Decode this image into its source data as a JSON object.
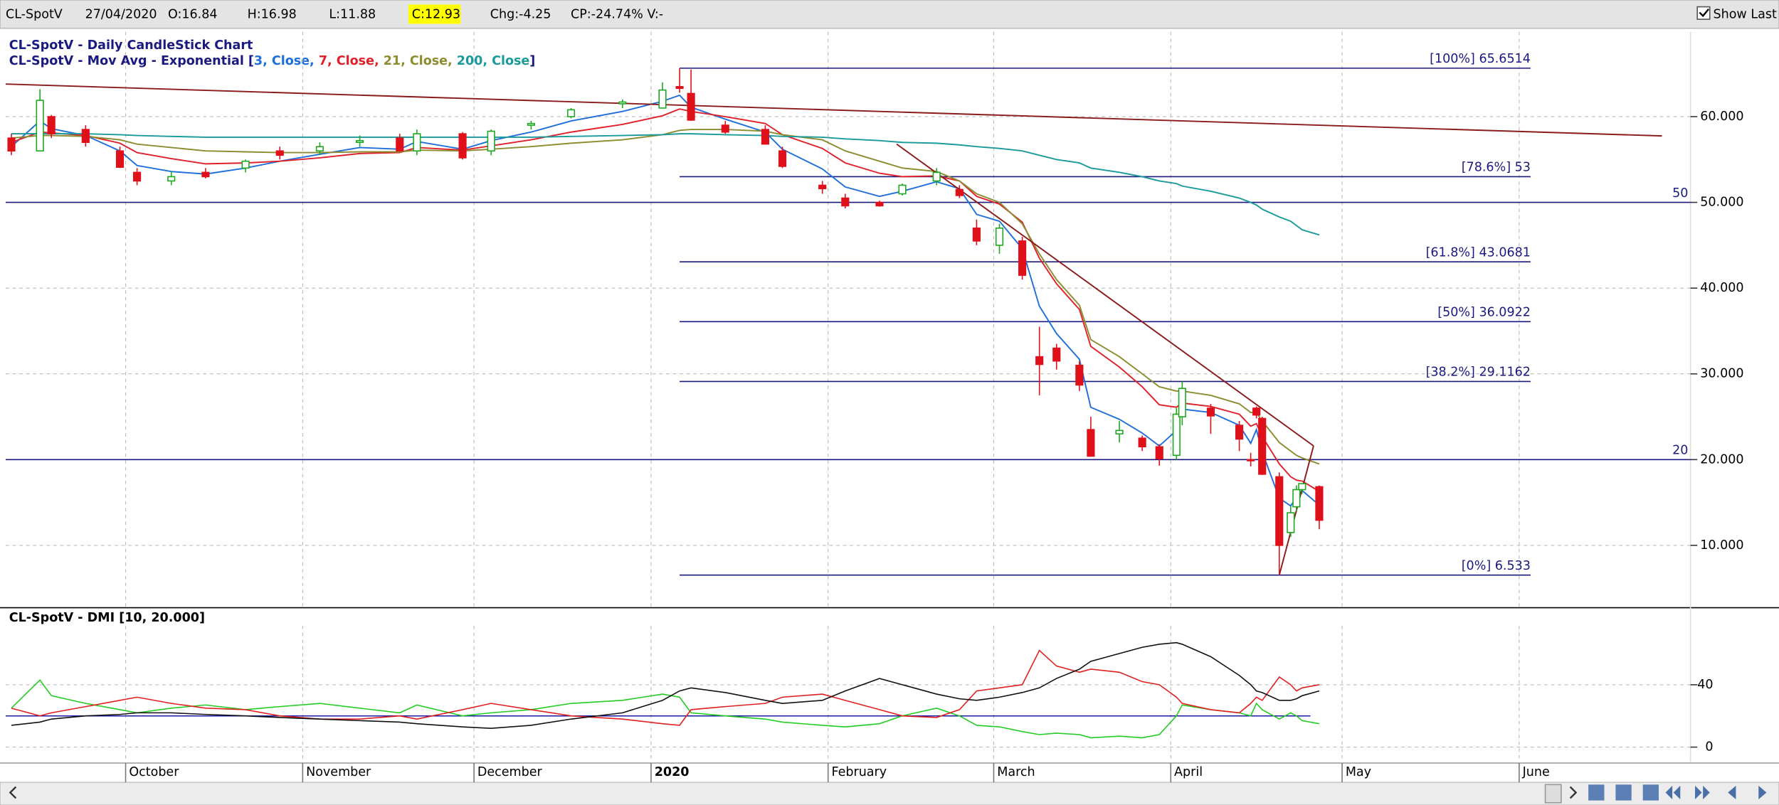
{
  "header": {
    "symbol": "CL-SpotV",
    "date": "27/04/2020",
    "open": "O:16.84",
    "high": "H:16.98",
    "low": "L:11.88",
    "close": "C:12.93",
    "change": "Chg:-4.25",
    "change_pct": "CP:-24.74% V:-",
    "show_last": "Show Last"
  },
  "chart_data": [
    {
      "type": "candlestick",
      "title": "CL-SpotV - Daily CandleStick Chart",
      "subtitle": [
        {
          "text": "CL-SpotV - Mov Avg - Exponential [",
          "color": "#1a1a80"
        },
        {
          "text": "3, Close, ",
          "color": "#1e6fd9"
        },
        {
          "text": "7, Close, ",
          "color": "#e0202a"
        },
        {
          "text": "21, Close, ",
          "color": "#8c8c30"
        },
        {
          "text": "200, Close",
          "color": "#1a9a9a"
        },
        {
          "text": "]",
          "color": "#1a1a80"
        }
      ],
      "x": [
        "2019-09-11",
        "2019-09-16",
        "2019-09-18",
        "2019-09-24",
        "2019-09-30",
        "2019-10-03",
        "2019-10-09",
        "2019-10-15",
        "2019-10-22",
        "2019-10-28",
        "2019-11-04",
        "2019-11-11",
        "2019-11-18",
        "2019-11-21",
        "2019-11-29",
        "2019-12-04",
        "2019-12-11",
        "2019-12-18",
        "2019-12-27",
        "2020-01-03",
        "2020-01-06",
        "2020-01-08",
        "2020-01-14",
        "2020-01-21",
        "2020-01-24",
        "2020-01-31",
        "2020-02-04",
        "2020-02-10",
        "2020-02-14",
        "2020-02-20",
        "2020-02-24",
        "2020-02-27",
        "2020-03-02",
        "2020-03-06",
        "2020-03-09",
        "2020-03-12",
        "2020-03-16",
        "2020-03-18",
        "2020-03-23",
        "2020-03-27",
        "2020-03-30",
        "2020-04-02",
        "2020-04-03",
        "2020-04-08",
        "2020-04-13",
        "2020-04-15",
        "2020-04-16",
        "2020-04-17",
        "2020-04-20",
        "2020-04-22",
        "2020-04-23",
        "2020-04-24",
        "2020-04-27"
      ],
      "open": [
        57.5,
        56,
        60,
        58.5,
        56,
        53.5,
        52.5,
        53.5,
        54,
        56,
        56,
        57,
        57.5,
        56,
        58,
        56,
        59,
        60,
        61.5,
        61,
        63.5,
        62.7,
        59,
        58.5,
        56,
        52,
        50.5,
        50,
        51,
        52.5,
        51.5,
        47,
        45,
        45.5,
        32,
        33,
        31,
        23.5,
        23,
        22.5,
        21.5,
        20.5,
        25,
        26,
        24,
        20,
        26,
        24.8,
        18,
        11.5,
        14.5,
        16.5,
        16.84
      ],
      "high": [
        58,
        63.2,
        60.2,
        59,
        56.5,
        54,
        53.6,
        54,
        55,
        56.5,
        57,
        57.8,
        58,
        58.5,
        58.2,
        58.5,
        59.5,
        61,
        62,
        64,
        65.65,
        65.5,
        59.5,
        59,
        56.5,
        52.5,
        51,
        50.2,
        52.2,
        54,
        52,
        48,
        47.5,
        46,
        35.5,
        33.5,
        31.5,
        25,
        24.5,
        22.8,
        21.8,
        26,
        29.1,
        26.5,
        24.5,
        20.8,
        26.2,
        25,
        18.5,
        14.5,
        17,
        17.2,
        16.98
      ],
      "low": [
        55.5,
        56,
        57.5,
        56.5,
        54,
        52,
        52,
        52.8,
        53.5,
        55,
        55.5,
        56.5,
        56,
        55.5,
        55,
        55.5,
        58.5,
        59.8,
        61,
        61,
        62.8,
        59.5,
        58,
        57,
        54,
        51,
        49.3,
        49.5,
        50.8,
        52,
        50.5,
        45,
        44,
        41,
        27.5,
        30.5,
        28,
        20.5,
        22,
        21,
        19.3,
        20,
        24,
        23,
        21,
        19.2,
        24.8,
        18.2,
        6.53,
        11,
        14,
        16,
        11.88
      ],
      "close": [
        56,
        61.9,
        58,
        57,
        54.1,
        52.5,
        53,
        53,
        54.8,
        55.5,
        56.5,
        57.2,
        56,
        58,
        55.2,
        58.3,
        59.2,
        60.8,
        61.7,
        63.1,
        63.3,
        59.6,
        58.2,
        56.8,
        54.2,
        51.6,
        49.6,
        49.6,
        52,
        53.5,
        50.8,
        45.5,
        47,
        41.5,
        31.1,
        31.5,
        28.7,
        20.4,
        23.4,
        21.5,
        20.1,
        25.3,
        28.3,
        25.1,
        22.4,
        19.9,
        25.2,
        18.3,
        10,
        13.8,
        16.5,
        17.2,
        12.93
      ],
      "up_color": "#1fa81f",
      "down_color": "#e0101a",
      "lines": [
        {
          "color": "#1e6fd9",
          "values": [
            56.5,
            59.5,
            58.6,
            57.8,
            56,
            54.3,
            53.6,
            53.3,
            54,
            54.8,
            55.6,
            56.4,
            56.2,
            57.1,
            56.2,
            57.2,
            58.2,
            59.5,
            60.6,
            61.8,
            62.5,
            61.1,
            59.7,
            58.2,
            56.2,
            53.9,
            51.8,
            50.7,
            51.3,
            52.4,
            51.6,
            48.6,
            47.8,
            44.6,
            37.9,
            34.7,
            31.7,
            26.1,
            24.7,
            23.1,
            21.6,
            23.4,
            25.9,
            25.5,
            24,
            21.9,
            23.5,
            20.9,
            15.5,
            14.6,
            15.6,
            16.4,
            14.7
          ]
        },
        {
          "color": "#e0202a",
          "values": [
            57,
            58.2,
            58.1,
            57.8,
            56.9,
            55.8,
            55.1,
            54.5,
            54.6,
            54.8,
            55.2,
            55.7,
            55.8,
            56.4,
            56.1,
            56.6,
            57.3,
            58.2,
            59.1,
            60.1,
            60.9,
            60.6,
            60,
            59.2,
            57.9,
            56.3,
            54.6,
            53.4,
            53,
            53.1,
            52.5,
            50.7,
            49.8,
            47.7,
            43.5,
            40.5,
            37.5,
            33.2,
            30.8,
            28.5,
            26.4,
            26.1,
            26.6,
            26.2,
            25.3,
            23.9,
            24.2,
            22.7,
            19.5,
            18,
            17.6,
            17.5,
            16.3
          ]
        },
        {
          "color": "#8c8c30",
          "values": [
            57.5,
            57.8,
            57.8,
            57.7,
            57.3,
            56.8,
            56.4,
            56,
            55.9,
            55.8,
            55.8,
            55.9,
            55.9,
            56.1,
            56,
            56.2,
            56.5,
            56.9,
            57.3,
            57.9,
            58.4,
            58.5,
            58.5,
            58.3,
            57.9,
            57.3,
            56,
            54.8,
            54,
            53.6,
            52.5,
            51,
            50,
            47.5,
            44,
            41,
            38,
            34,
            32,
            30,
            28.5,
            28,
            28,
            27.5,
            26.5,
            25.5,
            25.5,
            24.5,
            22,
            21,
            20.5,
            20.2,
            19.5
          ]
        },
        {
          "color": "#1a9a9a",
          "values": [
            58,
            58,
            58,
            58,
            57.9,
            57.8,
            57.7,
            57.6,
            57.6,
            57.6,
            57.6,
            57.6,
            57.6,
            57.6,
            57.6,
            57.6,
            57.6,
            57.7,
            57.8,
            57.9,
            58,
            58,
            57.9,
            57.8,
            57.7,
            57.6,
            57.4,
            57.2,
            57,
            56.9,
            56.7,
            56.5,
            56.3,
            56,
            55.5,
            55,
            54.6,
            54,
            53.5,
            53,
            52.5,
            52.2,
            51.9,
            51.3,
            50.5,
            50,
            49.7,
            49.2,
            48.3,
            47.8,
            47.3,
            46.8,
            46.2
          ]
        }
      ],
      "levels": [
        {
          "value": 65.6514,
          "label": "[100%] 65.6514"
        },
        {
          "value": 53,
          "label": "[78.6%] 53"
        },
        {
          "value": 43.0681,
          "label": "[61.8%] 43.0681"
        },
        {
          "value": 36.0922,
          "label": "[50%] 36.0922"
        },
        {
          "value": 29.1162,
          "label": "[38.2%] 29.1162"
        },
        {
          "value": 6.533,
          "label": "[0%] 6.533"
        }
      ],
      "levels_from": "2020-01-06",
      "levels_to": "2020-06-03",
      "level_color": "#1a1a80",
      "hlines": [
        {
          "value": 50,
          "label": "50"
        },
        {
          "value": 20,
          "label": "20"
        }
      ],
      "trendlines": [
        {
          "color": "#8b1a1a",
          "points": [
            {
              "x": "2019-09-10",
              "y": 63.8
            },
            {
              "x": "2020-06-26",
              "y": 57.75
            }
          ]
        },
        {
          "color": "#8b1a1a",
          "points": [
            {
              "x": "2020-02-13",
              "y": 56.8
            },
            {
              "x": "2020-04-26",
              "y": 21.6
            }
          ]
        },
        {
          "color": "#8b1a1a",
          "points": [
            {
              "x": "2020-04-20",
              "y": 6.53
            },
            {
              "x": "2020-04-26",
              "y": 21.6
            }
          ]
        }
      ],
      "xlim": [
        "2019-09-10",
        "2020-07-01"
      ],
      "xticks": [
        {
          "value": "2019-10-01",
          "label": "October"
        },
        {
          "value": "2019-11-01",
          "label": "November"
        },
        {
          "value": "2019-12-01",
          "label": "December"
        },
        {
          "value": "2020-01-01",
          "label": "2020"
        },
        {
          "value": "2020-02-01",
          "label": "February"
        },
        {
          "value": "2020-03-01",
          "label": "March"
        },
        {
          "value": "2020-04-01",
          "label": "April"
        },
        {
          "value": "2020-05-01",
          "label": "May"
        },
        {
          "value": "2020-06-01",
          "label": "June"
        }
      ],
      "ylim": [
        2.86,
        69.9
      ],
      "yticks": [
        {
          "value": 10,
          "label": "10.000"
        },
        {
          "value": 20,
          "label": "20.000"
        },
        {
          "value": 30,
          "label": "30.000"
        },
        {
          "value": 40,
          "label": "40.000"
        },
        {
          "value": 50,
          "label": "50.000"
        },
        {
          "value": 60,
          "label": "60.000"
        }
      ],
      "grid": true
    },
    {
      "type": "line",
      "title": "CL-SpotV - DMI [10, 20.000]",
      "series": [
        {
          "color": "#22cc22",
          "values": [
            25,
            43,
            33,
            28,
            24,
            22,
            25,
            27,
            24,
            26,
            28,
            25,
            22,
            27,
            20,
            22,
            24,
            28,
            30,
            34,
            32,
            22,
            20,
            18,
            16,
            14,
            13,
            15,
            20,
            25,
            20,
            14,
            13,
            10,
            8,
            9,
            8,
            6,
            7,
            6,
            8,
            20,
            27,
            24,
            22,
            20,
            28,
            24,
            18,
            22,
            20,
            17,
            15
          ]
        },
        {
          "color": "#e02020",
          "values": [
            25,
            20,
            22,
            26,
            30,
            32,
            28,
            25,
            24,
            20,
            18,
            18,
            20,
            18,
            24,
            28,
            24,
            20,
            18,
            15,
            14,
            24,
            26,
            28,
            32,
            34,
            30,
            24,
            20,
            19,
            24,
            36,
            38,
            40,
            62,
            52,
            48,
            50,
            48,
            42,
            40,
            32,
            28,
            24,
            22,
            28,
            32,
            30,
            45,
            40,
            36,
            38,
            40
          ]
        },
        {
          "color": "#111111",
          "values": [
            14,
            16,
            18,
            20,
            21,
            22,
            22,
            21,
            20,
            19,
            18,
            17,
            16,
            15,
            13,
            12,
            14,
            18,
            22,
            30,
            36,
            38,
            35,
            30,
            28,
            30,
            36,
            44,
            40,
            34,
            31,
            30,
            32,
            35,
            38,
            44,
            50,
            55,
            60,
            64,
            66,
            67,
            66,
            58,
            46,
            40,
            36,
            35,
            30,
            30,
            31,
            33,
            36
          ]
        }
      ],
      "hline": {
        "value": 20,
        "color": "#1a1aa0"
      },
      "ylim": [
        -9.5,
        75.6
      ],
      "yticks": [
        0,
        40
      ],
      "grid": true
    }
  ]
}
